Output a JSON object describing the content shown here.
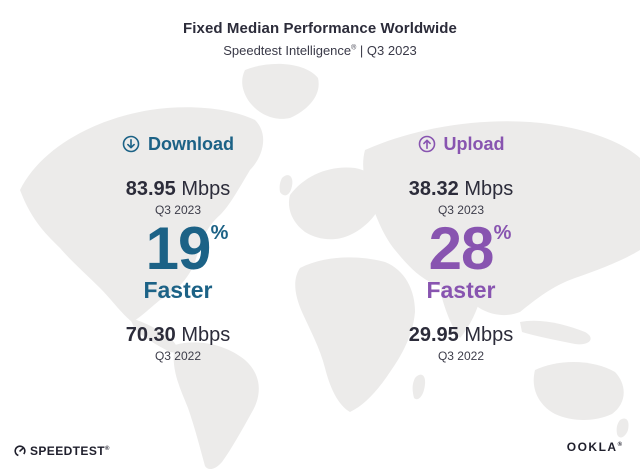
{
  "header": {
    "title": "Fixed Median Performance Worldwide",
    "subtitle_prefix": "Speedtest Intelligence",
    "subtitle_reg": "®",
    "subtitle_suffix": " | Q3 2023"
  },
  "download": {
    "icon": "download-circle-arrow-icon",
    "label": "Download",
    "current_value": "83.95",
    "current_unit": " Mbps",
    "current_period": "Q3 2023",
    "change_value": "19",
    "change_symbol": "%",
    "change_label": "Faster",
    "previous_value": "70.30",
    "previous_unit": " Mbps",
    "previous_period": "Q3 2022",
    "color": "#1c6286"
  },
  "upload": {
    "icon": "upload-circle-arrow-icon",
    "label": "Upload",
    "current_value": "38.32",
    "current_unit": " Mbps",
    "current_period": "Q3 2023",
    "change_value": "28",
    "change_symbol": "%",
    "change_label": "Faster",
    "previous_value": "29.95",
    "previous_unit": " Mbps",
    "previous_period": "Q3 2022",
    "color": "#8854b0"
  },
  "footer": {
    "left_brand": "SPEEDTEST",
    "left_trademark": "®",
    "left_icon": "speedtest-gauge-icon",
    "right_brand": "OOKLA",
    "right_trademark": "®"
  },
  "colors": {
    "background": "#ffffff",
    "map": "#ecebea",
    "text": "#2c2c3a"
  }
}
